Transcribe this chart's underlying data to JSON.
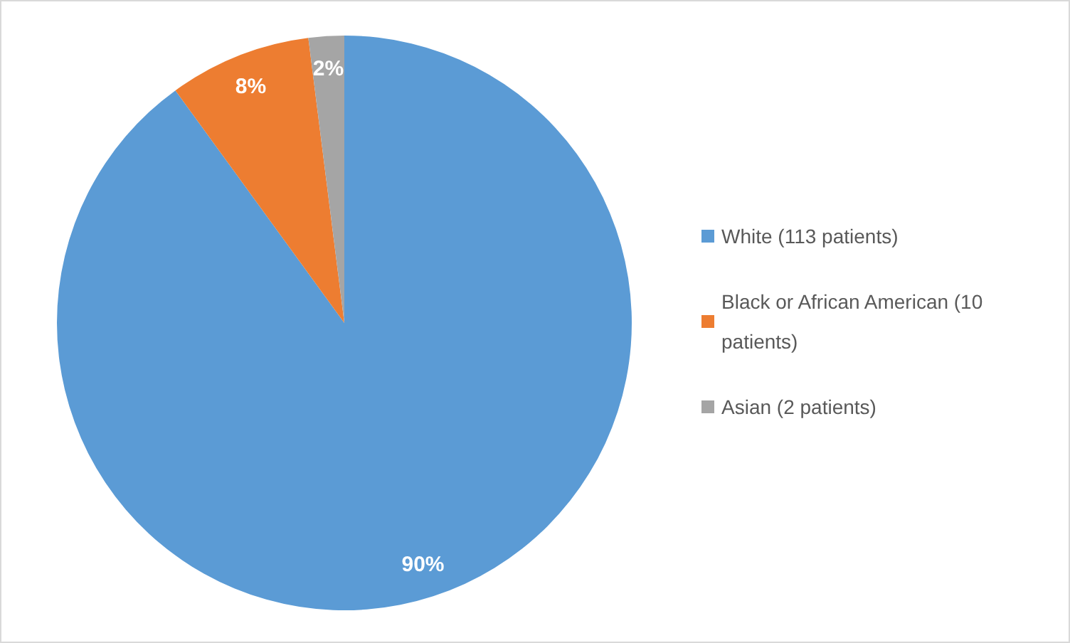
{
  "chart_data": {
    "type": "pie",
    "categories": [
      "White (113 patients)",
      "Black or African American (10 patients)",
      "Asian (2 patients)"
    ],
    "values": [
      90,
      8,
      2
    ],
    "colors": [
      "#5b9bd5",
      "#ed7d31",
      "#a5a5a5"
    ],
    "value_labels": [
      "90%",
      "8%",
      "2%"
    ],
    "legend": "right"
  }
}
